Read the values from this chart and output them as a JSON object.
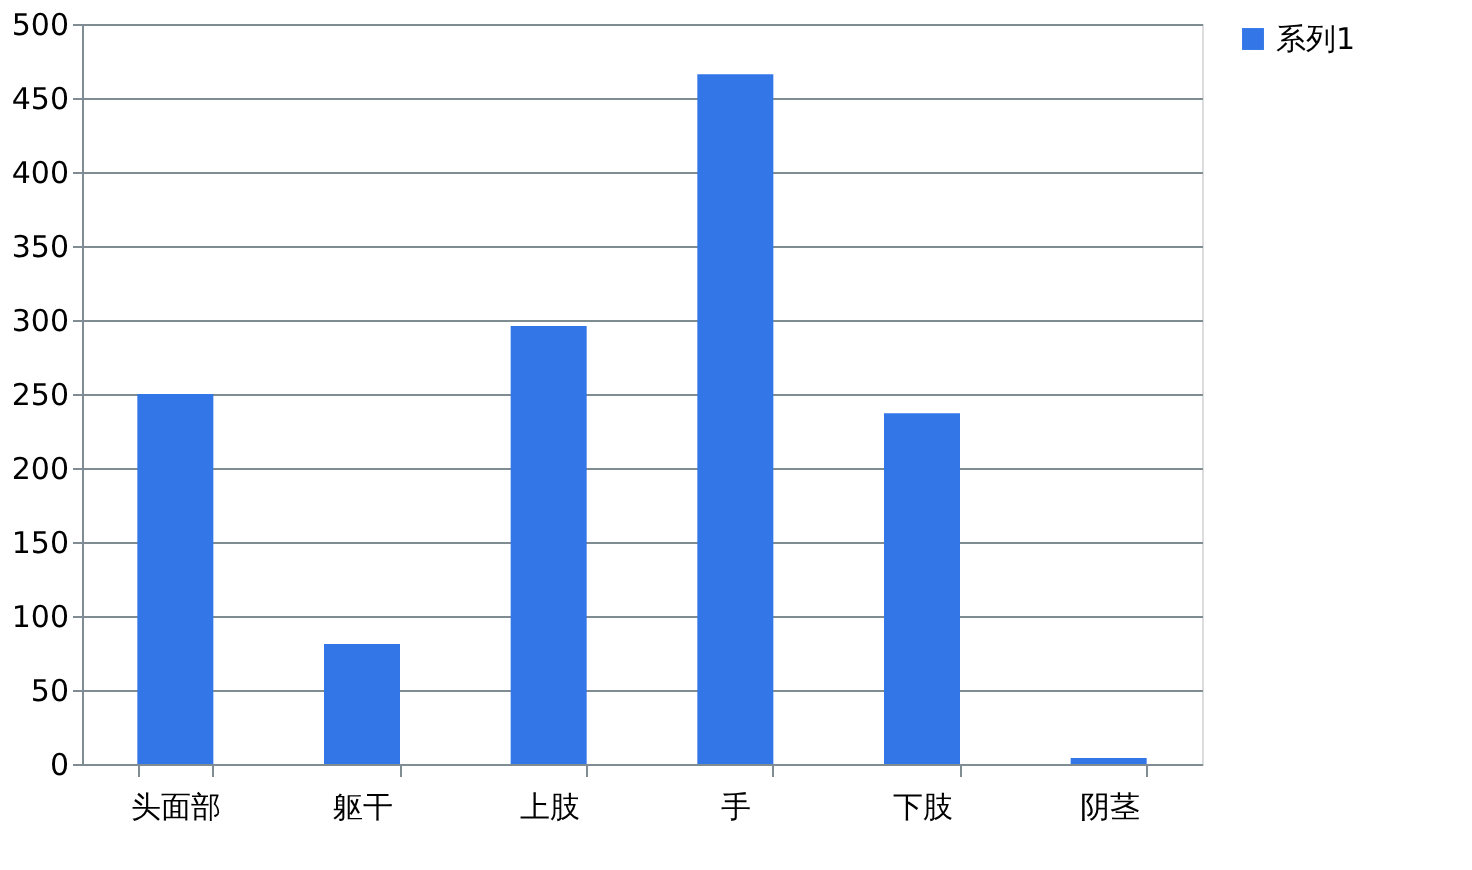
{
  "chart_data": {
    "type": "bar",
    "categories": [
      "头面部",
      "躯干",
      "上肢",
      "手",
      "下肢",
      "阴茎"
    ],
    "series": [
      {
        "name": "系列1",
        "color": "#3276e8",
        "values": [
          250,
          81,
          296,
          466,
          237,
          4
        ]
      }
    ],
    "ylim": [
      0,
      500
    ],
    "yticks": [
      0,
      50,
      100,
      150,
      200,
      250,
      300,
      350,
      400,
      450,
      500
    ],
    "grid": "y",
    "legend": "right"
  }
}
